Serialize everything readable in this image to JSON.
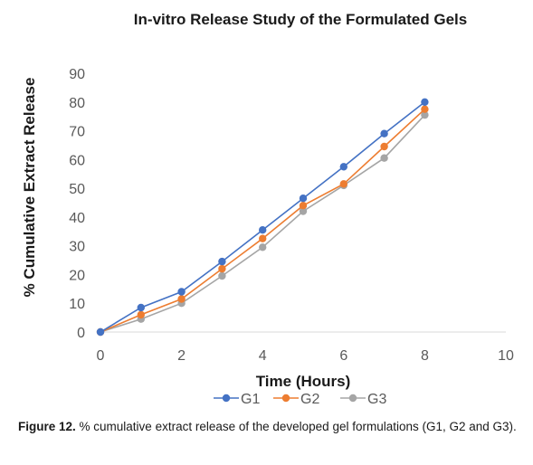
{
  "chart_data": {
    "type": "line",
    "title": "In-vitro Release Study of the Formulated Gels",
    "xlabel": "Time (Hours)",
    "ylabel": "% Cumulative Extract Release",
    "xlim": [
      0,
      10
    ],
    "ylim": [
      0,
      90
    ],
    "xticks": [
      0,
      2,
      4,
      6,
      8,
      10
    ],
    "yticks": [
      0,
      10,
      20,
      30,
      40,
      50,
      60,
      70,
      80,
      90
    ],
    "grid": false,
    "legend_position": "bottom",
    "x": [
      0,
      1,
      2,
      3,
      4,
      5,
      6,
      7,
      8
    ],
    "series": [
      {
        "name": "G1",
        "color": "#4472c4",
        "values": [
          0,
          8.5,
          14,
          24.5,
          35.5,
          46.5,
          57.5,
          69,
          80
        ]
      },
      {
        "name": "G2",
        "color": "#ed7d31",
        "values": [
          0,
          6,
          11.5,
          22,
          32.5,
          44,
          51.5,
          64.5,
          77.5
        ]
      },
      {
        "name": "G3",
        "color": "#a5a5a5",
        "values": [
          0,
          4.5,
          10,
          19.5,
          29.5,
          42,
          51,
          60.5,
          75.5
        ]
      }
    ]
  },
  "caption": {
    "label": "Figure 12.",
    "text": " % cumulative extract release of the developed gel formulations (G1, G2 and G3)."
  }
}
